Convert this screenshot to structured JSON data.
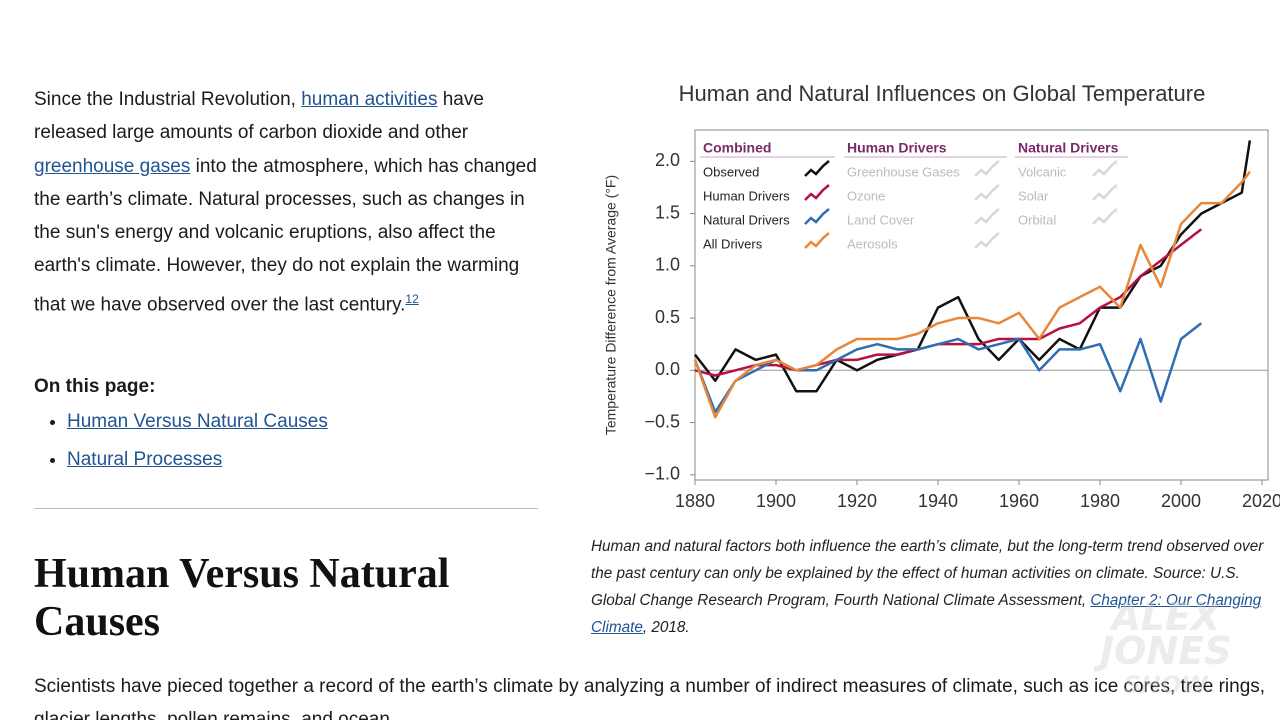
{
  "article": {
    "intro": [
      "Since the Industrial Revolution, ",
      "human activities",
      " have released large amounts of carbon dioxide and other ",
      "greenhouse gases",
      " into the atmosphere, which has changed the earth’s climate. Natural processes, such as changes in the sun's energy and volcanic eruptions, also affect the earth's climate. However, they do not explain the warming that we have observed over the last century.",
      "12"
    ],
    "toc_title": "On this page:",
    "toc": [
      "Human Versus Natural Causes",
      "Natural Processes"
    ],
    "heading": "Human Versus Natural Causes",
    "body": "Scientists have pieced together a record of the earth’s climate by analyzing a number of indirect measures of climate, such as ice cores, tree rings, glacier lengths, pollen remains, and ocean"
  },
  "caption": [
    "Human and natural factors both influence the earth’s climate, but the long-term trend observed over the past century can only be explained by the effect of human activities on climate. Source: U.S. Global Change Research Program, Fourth National Climate Assessment, ",
    "Chapter 2: Our Changing Climate",
    ", 2018."
  ],
  "watermark": [
    "ALEX",
    "JONES",
    "SHOW"
  ],
  "chart_data": {
    "type": "line",
    "title": "Human and Natural Influences on Global Temperature",
    "y_label": "Temperature Difference from Average (°F)",
    "x": [
      1880,
      1885,
      1890,
      1895,
      1900,
      1905,
      1910,
      1915,
      1920,
      1925,
      1930,
      1935,
      1940,
      1945,
      1950,
      1955,
      1960,
      1965,
      1970,
      1975,
      1980,
      1985,
      1990,
      1995,
      2000,
      2005,
      2010,
      2015,
      2017
    ],
    "xlim": [
      1880,
      2020
    ],
    "xticks": [
      1880,
      1900,
      1920,
      1940,
      1960,
      1980,
      2000,
      2020
    ],
    "ylim": [
      -1.05,
      2.3
    ],
    "yticks": [
      {
        "value": 2,
        "label": "2.0"
      },
      {
        "value": 1.5,
        "label": "1.5"
      },
      {
        "value": 1,
        "label": "1.0"
      },
      {
        "value": 0.5,
        "label": "0.5"
      },
      {
        "value": 0,
        "label": "0.0"
      },
      {
        "value": -0.5,
        "label": "−0.5"
      },
      {
        "value": -1,
        "label": "−1.0"
      }
    ],
    "zero_line": true,
    "legend_title": "Combined",
    "series": [
      {
        "name": "Observed",
        "color": "#111111",
        "values": [
          0.15,
          -0.1,
          0.2,
          0.1,
          0.15,
          -0.2,
          -0.2,
          0.1,
          0.0,
          0.1,
          0.15,
          0.2,
          0.6,
          0.7,
          0.3,
          0.1,
          0.3,
          0.1,
          0.3,
          0.2,
          0.6,
          0.6,
          0.9,
          1.0,
          1.3,
          1.5,
          1.6,
          1.7,
          2.2
        ]
      },
      {
        "name": "Human Drivers",
        "color": "#b5123e",
        "values": [
          0.0,
          -0.05,
          0.0,
          0.05,
          0.05,
          0.0,
          0.05,
          0.1,
          0.1,
          0.15,
          0.15,
          0.2,
          0.25,
          0.25,
          0.25,
          0.3,
          0.3,
          0.3,
          0.4,
          0.45,
          0.6,
          0.7,
          0.9,
          1.05,
          1.2,
          1.35,
          null,
          null,
          null
        ]
      },
      {
        "name": "Natural Drivers",
        "color": "#2f6db5",
        "values": [
          0.1,
          -0.4,
          -0.1,
          0.0,
          0.1,
          0.0,
          0.0,
          0.1,
          0.2,
          0.25,
          0.2,
          0.2,
          0.25,
          0.3,
          0.2,
          0.25,
          0.3,
          0.0,
          0.2,
          0.2,
          0.25,
          -0.2,
          0.3,
          -0.3,
          0.3,
          0.45,
          null,
          null,
          null
        ]
      },
      {
        "name": "All Drivers",
        "color": "#e8873a",
        "values": [
          0.1,
          -0.45,
          -0.1,
          0.05,
          0.1,
          0.0,
          0.05,
          0.2,
          0.3,
          0.3,
          0.3,
          0.35,
          0.45,
          0.5,
          0.5,
          0.45,
          0.55,
          0.3,
          0.6,
          0.7,
          0.8,
          0.6,
          1.2,
          0.8,
          1.4,
          1.6,
          1.6,
          1.8,
          1.9
        ]
      }
    ],
    "legend_groups": [
      {
        "title": "Human Drivers",
        "items": [
          "Greenhouse Gases",
          "Ozone",
          "Land Cover",
          "Aerosols"
        ]
      },
      {
        "title": "Natural Drivers",
        "items": [
          "Volcanic",
          "Solar",
          "Orbital"
        ]
      }
    ]
  }
}
